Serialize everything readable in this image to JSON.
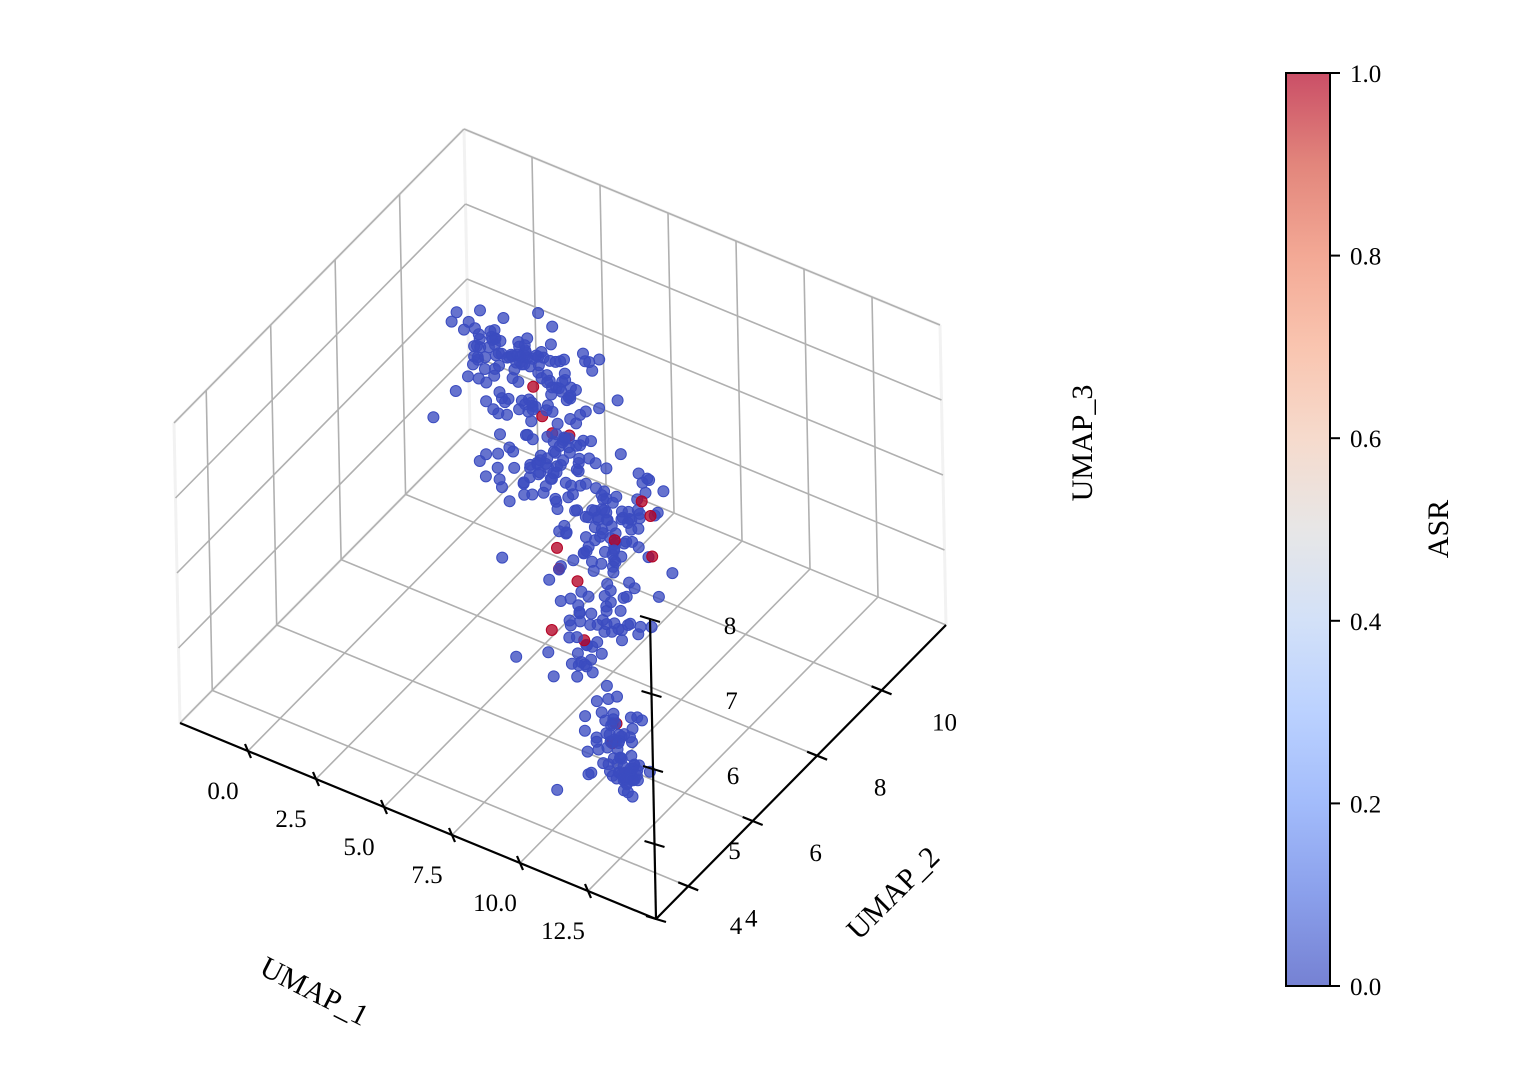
{
  "chart_data": {
    "type": "scatter",
    "projection": "3d",
    "title": "",
    "xlabel": "UMAP_1",
    "ylabel": "UMAP_2",
    "zlabel": "UMAP_3",
    "xlim": [
      -2.5,
      15
    ],
    "ylim": [
      3,
      12
    ],
    "zlim": [
      4,
      8
    ],
    "xticks": [
      0.0,
      2.5,
      5.0,
      7.5,
      10.0,
      12.5
    ],
    "xtick_labels": [
      "0.0",
      "2.5",
      "5.0",
      "7.5",
      "10.0",
      "12.5"
    ],
    "yticks": [
      4,
      6,
      8,
      10
    ],
    "ytick_labels": [
      "4",
      "6",
      "8",
      "10"
    ],
    "zticks": [
      4,
      5,
      6,
      7,
      8
    ],
    "ztick_labels": [
      "4",
      "5",
      "6",
      "7",
      "8"
    ],
    "grid": true,
    "point_color_scale": "coolwarm",
    "point_alpha": 0.7,
    "series": [
      {
        "name": "ASR 0.0",
        "asr": 0.0,
        "count": 420,
        "clusters": [
          {
            "center": [
              0.3,
              10.5,
              6.2
            ],
            "spread": [
              1.3,
              0.4,
              0.25
            ],
            "count": 40
          },
          {
            "center": [
              3.5,
              9.0,
              6.9
            ],
            "spread": [
              1.8,
              0.8,
              0.35
            ],
            "count": 70
          },
          {
            "center": [
              5.5,
              8.0,
              6.5
            ],
            "spread": [
              1.7,
              0.9,
              0.5
            ],
            "count": 90
          },
          {
            "center": [
              7.0,
              8.2,
              5.8
            ],
            "spread": [
              1.4,
              0.8,
              0.5
            ],
            "count": 80
          },
          {
            "center": [
              8.5,
              6.8,
              5.4
            ],
            "spread": [
              1.2,
              0.8,
              0.45
            ],
            "count": 60
          },
          {
            "center": [
              11.0,
              5.0,
              5.0
            ],
            "spread": [
              0.7,
              0.6,
              0.3
            ],
            "count": 45
          },
          {
            "center": [
              12.8,
              4.0,
              5.1
            ],
            "spread": [
              0.5,
              0.35,
              0.25
            ],
            "count": 35
          }
        ]
      },
      {
        "name": "ASR 1.0",
        "asr": 1.0,
        "points": [
          [
            2.8,
            9.6,
            6.4
          ],
          [
            3.6,
            9.2,
            6.3
          ],
          [
            4.2,
            9.0,
            6.25
          ],
          [
            5.2,
            8.7,
            6.5
          ],
          [
            8.2,
            8.4,
            6.2
          ],
          [
            9.0,
            8.0,
            6.3
          ],
          [
            7.9,
            7.8,
            5.9
          ],
          [
            9.4,
            7.7,
            5.95
          ],
          [
            6.0,
            7.6,
            5.6
          ],
          [
            6.3,
            7.4,
            5.45
          ],
          [
            7.1,
            7.3,
            5.45
          ],
          [
            8.4,
            6.4,
            5.25
          ],
          [
            6.6,
            6.9,
            4.9
          ],
          [
            11.0,
            5.2,
            5.05
          ],
          [
            11.2,
            4.9,
            4.95
          ],
          [
            12.0,
            4.6,
            4.8
          ]
        ]
      }
    ],
    "colorbar": {
      "label": "ASR",
      "range": [
        0.0,
        1.0
      ],
      "ticks": [
        0.0,
        0.2,
        0.4,
        0.6,
        0.8,
        1.0
      ],
      "tick_labels": [
        "0.0",
        "0.2",
        "0.4",
        "0.6",
        "0.8",
        "1.0"
      ],
      "alpha": 0.7
    },
    "colors": {
      "low": "#3b4cc0",
      "high": "#b40426",
      "grid": "#b0b0b0",
      "pane": "#f2f2f2"
    }
  }
}
